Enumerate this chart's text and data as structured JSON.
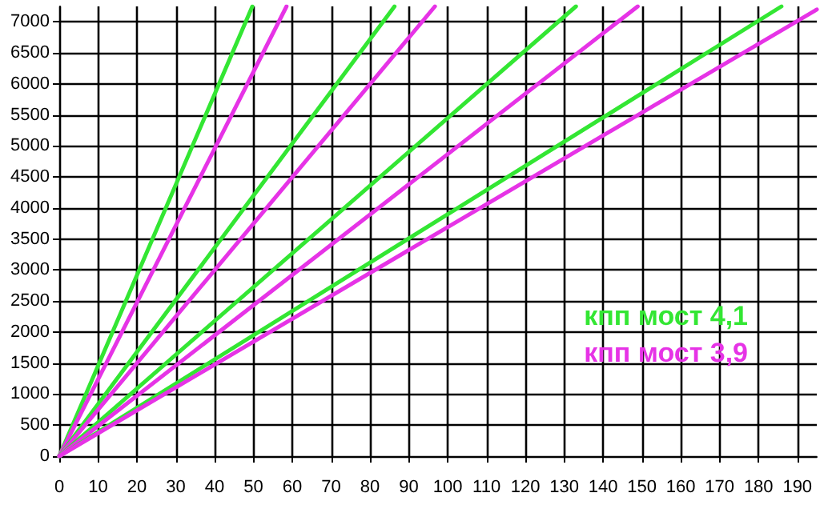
{
  "chart_data": {
    "type": "line",
    "xlim": [
      0,
      195
    ],
    "ylim": [
      0,
      7250
    ],
    "xticks": [
      0,
      10,
      20,
      30,
      40,
      50,
      60,
      70,
      80,
      90,
      100,
      110,
      120,
      130,
      140,
      150,
      160,
      170,
      180,
      190
    ],
    "yticks": [
      0,
      500,
      1000,
      1500,
      2000,
      2500,
      3000,
      3500,
      4000,
      4500,
      5000,
      5500,
      6000,
      6500,
      7000
    ],
    "grid": true,
    "legend": "right",
    "marker": "none",
    "line_style": "solid",
    "series": [
      {
        "name": "кпп мост 4,1",
        "color": "#33e633",
        "x": [
          0,
          49.7
        ],
        "values": [
          0,
          7250
        ]
      },
      {
        "name": "кпп мост 3,9",
        "color": "#e633e6",
        "x": [
          0,
          58.5
        ],
        "values": [
          0,
          7250
        ]
      },
      {
        "color": "#33e633",
        "x": [
          0,
          86.3
        ],
        "values": [
          0,
          7250
        ]
      },
      {
        "color": "#e633e6",
        "x": [
          0,
          96.7
        ],
        "values": [
          0,
          7250
        ]
      },
      {
        "color": "#33e633",
        "x": [
          0,
          133
        ],
        "values": [
          0,
          7250
        ]
      },
      {
        "color": "#e633e6",
        "x": [
          0,
          148.9
        ],
        "values": [
          0,
          7250
        ]
      },
      {
        "color": "#33e633",
        "x": [
          0,
          185.9
        ],
        "values": [
          0,
          7250
        ]
      },
      {
        "color": "#e633e6",
        "x": [
          0,
          195
        ],
        "values": [
          0,
          7200
        ]
      }
    ]
  }
}
